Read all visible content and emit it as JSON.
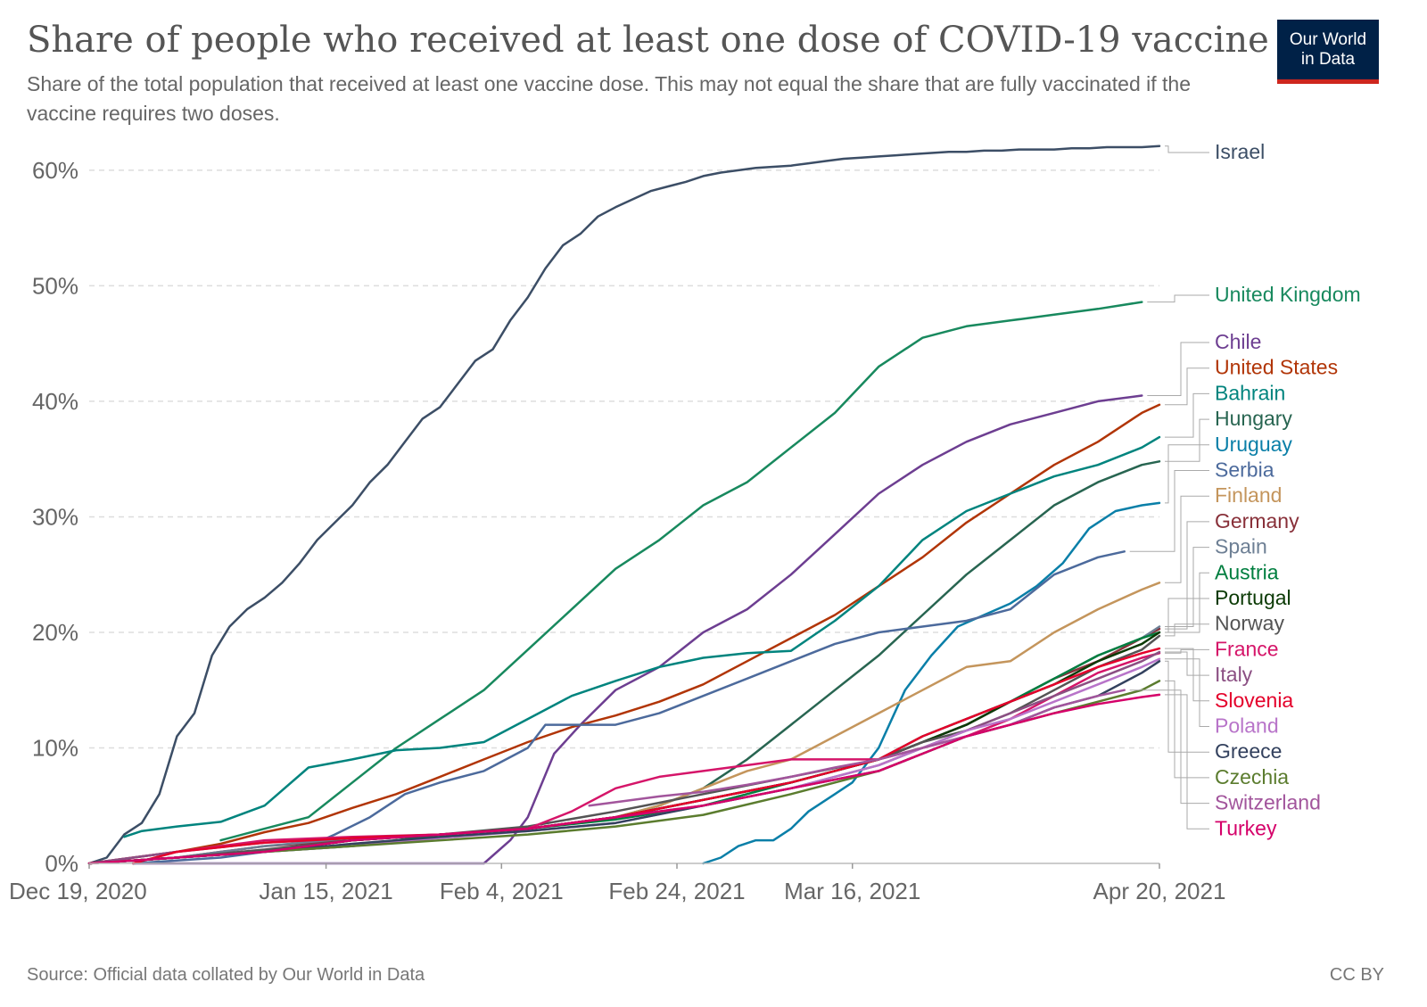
{
  "title": "Share of people who received at least one dose of COVID-19 vaccine",
  "subtitle": "Share of the total population that received at least one vaccine dose. This may not equal the share that are fully vaccinated if the vaccine requires two doses.",
  "logo": {
    "line1": "Our World",
    "line2": "in Data"
  },
  "footer": {
    "source": "Source: Official data collated by Our World in Data",
    "license": "CC BY"
  },
  "colors": {
    "accent_red": "#ce261e",
    "logo_bg": "#002147"
  },
  "chart_data": {
    "type": "line",
    "title": "Share of people who received at least one dose of COVID-19 vaccine",
    "ylabel": "",
    "xlabel": "",
    "x_unit": "days since Dec 19, 2020",
    "xlim": [
      0,
      122
    ],
    "ylim": [
      0,
      62
    ],
    "x_ticks": [
      {
        "day": 0,
        "label": "Dec 19, 2020"
      },
      {
        "day": 27,
        "label": "Jan 15, 2021"
      },
      {
        "day": 47,
        "label": "Feb 4, 2021"
      },
      {
        "day": 67,
        "label": "Feb 24, 2021"
      },
      {
        "day": 87,
        "label": "Mar 16, 2021"
      },
      {
        "day": 122,
        "label": "Apr 20, 2021"
      }
    ],
    "y_ticks": [
      {
        "value": 0,
        "label": "0%"
      },
      {
        "value": 10,
        "label": "10%"
      },
      {
        "value": 20,
        "label": "20%"
      },
      {
        "value": 30,
        "label": "30%"
      },
      {
        "value": 40,
        "label": "40%"
      },
      {
        "value": 50,
        "label": "50%"
      },
      {
        "value": 60,
        "label": "60%"
      }
    ],
    "series": [
      {
        "name": "Israel",
        "color": "#3c4e66",
        "x": [
          0,
          2,
          4,
          6,
          8,
          10,
          12,
          14,
          16,
          18,
          20,
          22,
          24,
          26,
          28,
          30,
          32,
          34,
          36,
          38,
          40,
          42,
          44,
          46,
          48,
          50,
          52,
          54,
          56,
          58,
          60,
          62,
          64,
          66,
          68,
          70,
          72,
          74,
          76,
          78,
          80,
          82,
          84,
          86,
          88,
          90,
          92,
          94,
          96,
          98,
          100,
          102,
          104,
          106,
          108,
          110,
          112,
          114,
          116,
          118,
          120,
          122
        ],
        "values": [
          0,
          0.5,
          2.5,
          3.5,
          6,
          11,
          13,
          18,
          20.5,
          22,
          23,
          24.3,
          26,
          28,
          29.5,
          31,
          33,
          34.5,
          36.5,
          38.5,
          39.5,
          41.5,
          43.5,
          44.5,
          47,
          49,
          51.5,
          53.5,
          54.5,
          56,
          56.8,
          57.5,
          58.2,
          58.6,
          59,
          59.5,
          59.8,
          60,
          60.2,
          60.3,
          60.4,
          60.6,
          60.8,
          61,
          61.1,
          61.2,
          61.3,
          61.4,
          61.5,
          61.6,
          61.6,
          61.7,
          61.7,
          61.8,
          61.8,
          61.8,
          61.9,
          61.9,
          62,
          62,
          62,
          62.1
        ]
      },
      {
        "name": "United Kingdom",
        "color": "#18895e",
        "x": [
          15,
          20,
          25,
          30,
          35,
          40,
          45,
          50,
          55,
          60,
          65,
          70,
          75,
          80,
          85,
          90,
          95,
          100,
          105,
          110,
          115,
          120
        ],
        "values": [
          2,
          3,
          4,
          7,
          10,
          12.5,
          15,
          18.5,
          22,
          25.5,
          28,
          31,
          33,
          36,
          39,
          43,
          45.5,
          46.5,
          47,
          47.5,
          48,
          48.6
        ]
      },
      {
        "name": "Chile",
        "color": "#6d3e91",
        "x": [
          5,
          10,
          20,
          30,
          40,
          45,
          48,
          50,
          53,
          56,
          60,
          65,
          70,
          75,
          80,
          85,
          90,
          95,
          100,
          105,
          110,
          115,
          120
        ],
        "values": [
          0,
          0,
          0,
          0,
          0,
          0,
          2,
          4,
          9.5,
          12,
          15,
          17,
          20,
          22,
          25,
          28.5,
          32,
          34.5,
          36.5,
          38,
          39,
          40,
          40.5
        ]
      },
      {
        "name": "United States",
        "color": "#b13507",
        "x": [
          0,
          5,
          10,
          15,
          20,
          25,
          30,
          35,
          40,
          45,
          50,
          55,
          60,
          65,
          70,
          75,
          80,
          85,
          90,
          95,
          100,
          105,
          110,
          115,
          120,
          122
        ],
        "values": [
          0,
          0.5,
          1,
          1.7,
          2.7,
          3.5,
          4.8,
          6,
          7.5,
          9,
          10.5,
          11.8,
          12.8,
          14,
          15.5,
          17.5,
          19.5,
          21.5,
          24,
          26.5,
          29.5,
          32,
          34.5,
          36.5,
          39,
          39.7
        ]
      },
      {
        "name": "Bahrain",
        "color": "#00847e",
        "x": [
          4,
          6,
          10,
          15,
          20,
          25,
          30,
          35,
          40,
          45,
          50,
          55,
          60,
          65,
          70,
          75,
          80,
          85,
          90,
          95,
          100,
          105,
          110,
          115,
          120,
          122
        ],
        "values": [
          2.3,
          2.8,
          3.2,
          3.6,
          5,
          8.3,
          9,
          9.8,
          10,
          10.5,
          12.5,
          14.5,
          15.8,
          17,
          17.8,
          18.2,
          18.4,
          21,
          24,
          28,
          30.5,
          32,
          33.5,
          34.5,
          36,
          36.9
        ]
      },
      {
        "name": "Hungary",
        "color": "#286551",
        "x": [
          0,
          10,
          20,
          30,
          40,
          50,
          55,
          60,
          65,
          70,
          75,
          80,
          85,
          90,
          95,
          100,
          105,
          110,
          115,
          120,
          122
        ],
        "values": [
          0,
          0.5,
          1,
          2,
          2.5,
          3,
          3.5,
          4,
          5,
          6.5,
          9,
          12,
          15,
          18,
          21.5,
          25,
          28,
          31,
          33,
          34.5,
          34.8
        ]
      },
      {
        "name": "Uruguay",
        "color": "#0a7fa8",
        "x": [
          70,
          72,
          74,
          76,
          78,
          80,
          82,
          85,
          87,
          90,
          93,
          96,
          99,
          102,
          105,
          108,
          111,
          114,
          117,
          120,
          122
        ],
        "values": [
          0,
          0.5,
          1.5,
          2,
          2,
          3,
          4.5,
          6,
          7,
          10,
          15,
          18,
          20.5,
          21.5,
          22.5,
          24,
          26,
          29,
          30.5,
          31,
          31.2
        ]
      },
      {
        "name": "Serbia",
        "color": "#4c6a9c",
        "x": [
          5,
          15,
          25,
          28,
          32,
          36,
          40,
          45,
          50,
          52,
          55,
          60,
          65,
          70,
          75,
          80,
          85,
          90,
          95,
          100,
          105,
          110,
          115,
          118
        ],
        "values": [
          0,
          0.5,
          1.5,
          2.5,
          4,
          6,
          7,
          8,
          10,
          12,
          12,
          12,
          13,
          14.5,
          16,
          17.5,
          19,
          20,
          20.5,
          21,
          22,
          25,
          26.5,
          27
        ]
      },
      {
        "name": "Finland",
        "color": "#c4955c",
        "x": [
          0,
          10,
          20,
          30,
          40,
          50,
          55,
          60,
          65,
          70,
          75,
          80,
          85,
          90,
          95,
          100,
          105,
          110,
          115,
          120,
          122
        ],
        "values": [
          0,
          0.5,
          1,
          2,
          2.5,
          3,
          3.5,
          4,
          5,
          6.5,
          8,
          9,
          11,
          13,
          15,
          17,
          17.5,
          20,
          22,
          23.7,
          24.3
        ]
      },
      {
        "name": "Germany",
        "color": "#883039",
        "x": [
          0,
          10,
          20,
          30,
          40,
          50,
          60,
          70,
          80,
          90,
          95,
          100,
          105,
          110,
          115,
          120,
          122
        ],
        "values": [
          0,
          0.5,
          1.5,
          2,
          2.5,
          3,
          4,
          5.5,
          7,
          9,
          10.5,
          12,
          14,
          16,
          17.5,
          19.5,
          20.3
        ]
      },
      {
        "name": "Spain",
        "color": "#6d7f94",
        "x": [
          0,
          10,
          20,
          30,
          40,
          50,
          60,
          70,
          80,
          90,
          95,
          100,
          105,
          110,
          115,
          120,
          122
        ],
        "values": [
          0,
          0.5,
          1.5,
          2.2,
          2.5,
          3,
          4,
          5.5,
          7,
          9,
          10.5,
          12,
          14,
          16,
          18,
          19.5,
          20.5
        ]
      },
      {
        "name": "Austria",
        "color": "#007e3f",
        "x": [
          0,
          10,
          20,
          30,
          40,
          50,
          60,
          70,
          80,
          90,
          95,
          100,
          105,
          110,
          115,
          120,
          122
        ],
        "values": [
          0,
          0.5,
          1,
          1.5,
          2.5,
          3,
          3.8,
          5,
          7,
          9,
          11,
          12.5,
          14,
          16,
          18,
          19.5,
          20
        ]
      },
      {
        "name": "Portugal",
        "color": "#0b3a05",
        "x": [
          0,
          10,
          20,
          30,
          40,
          50,
          60,
          70,
          80,
          90,
          95,
          100,
          105,
          110,
          115,
          120,
          122
        ],
        "values": [
          0,
          0.5,
          1,
          2,
          2.5,
          3,
          4,
          5.5,
          7,
          9,
          10.5,
          12,
          14,
          15.5,
          17.5,
          19,
          20
        ]
      },
      {
        "name": "Norway",
        "color": "#545454",
        "x": [
          0,
          10,
          20,
          30,
          40,
          50,
          60,
          70,
          80,
          90,
          95,
          100,
          105,
          110,
          115,
          120,
          122
        ],
        "values": [
          0,
          0.5,
          1.2,
          2,
          2.5,
          3.2,
          4.5,
          6,
          7.5,
          9,
          10.5,
          11.5,
          13,
          15,
          17,
          18.5,
          19.7
        ]
      },
      {
        "name": "France",
        "color": "#d51569",
        "x": [
          0,
          10,
          20,
          30,
          40,
          50,
          55,
          60,
          65,
          70,
          75,
          80,
          85,
          90,
          95,
          100,
          105,
          110,
          115,
          120,
          122
        ],
        "values": [
          0,
          1,
          2,
          2.3,
          2.5,
          3,
          4.5,
          6.5,
          7.5,
          8,
          8.5,
          9,
          9,
          9,
          10,
          11,
          12.5,
          14.5,
          16.5,
          17.8,
          18.2
        ]
      },
      {
        "name": "Italy",
        "color": "#8b4f83",
        "x": [
          0,
          10,
          20,
          30,
          40,
          50,
          60,
          70,
          80,
          90,
          95,
          100,
          105,
          110,
          115,
          120,
          122
        ],
        "values": [
          0,
          1,
          1.8,
          2.2,
          2.5,
          3,
          4,
          5,
          6.5,
          8.5,
          10,
          11.5,
          13,
          14.5,
          16,
          17.5,
          18.3
        ]
      },
      {
        "name": "Slovenia",
        "color": "#e4002b",
        "x": [
          5,
          10,
          20,
          30,
          40,
          50,
          60,
          70,
          80,
          90,
          95,
          100,
          105,
          110,
          115,
          120,
          122
        ],
        "values": [
          0,
          1,
          1.8,
          2.2,
          2.5,
          3,
          4,
          5.5,
          7,
          9,
          11,
          12.5,
          14,
          15.5,
          17,
          18.2,
          18.6
        ]
      },
      {
        "name": "Poland",
        "color": "#b874c9",
        "x": [
          0,
          10,
          20,
          30,
          40,
          50,
          60,
          70,
          80,
          90,
          95,
          100,
          105,
          110,
          115,
          120,
          122
        ],
        "values": [
          0,
          0.5,
          1,
          1.5,
          2.2,
          2.8,
          3.5,
          5,
          6.5,
          8.5,
          10,
          11.5,
          12.5,
          14,
          15.5,
          17,
          17.7
        ]
      },
      {
        "name": "Greece",
        "color": "#33415e",
        "x": [
          0,
          10,
          20,
          30,
          40,
          50,
          60,
          70,
          80,
          90,
          95,
          100,
          105,
          110,
          115,
          120,
          122
        ],
        "values": [
          0,
          0.5,
          1,
          1.7,
          2.3,
          2.8,
          3.5,
          5,
          6.5,
          8,
          9.5,
          11,
          12,
          13.5,
          14.5,
          16.5,
          17.5
        ]
      },
      {
        "name": "Czechia",
        "color": "#5b7c2e",
        "x": [
          0,
          10,
          20,
          30,
          40,
          50,
          60,
          70,
          80,
          90,
          95,
          100,
          105,
          110,
          115,
          120,
          122
        ],
        "values": [
          0,
          0.5,
          1,
          1.5,
          2,
          2.5,
          3.2,
          4.2,
          6,
          8,
          9.5,
          11,
          12,
          13,
          14,
          15,
          15.8
        ]
      },
      {
        "name": "Switzerland",
        "color": "#a2559c",
        "x": [
          57,
          60,
          65,
          70,
          75,
          80,
          85,
          90,
          95,
          100,
          105,
          110,
          115,
          118
        ],
        "values": [
          5,
          5.3,
          5.8,
          6.2,
          6.8,
          7.5,
          8.3,
          9,
          10,
          11,
          12,
          13.5,
          14.5,
          15
        ]
      },
      {
        "name": "Turkey",
        "color": "#d50069",
        "x": [
          0,
          10,
          20,
          30,
          40,
          50,
          60,
          70,
          80,
          90,
          95,
          100,
          105,
          110,
          115,
          120,
          122
        ],
        "values": [
          0,
          0.5,
          1,
          2,
          2.5,
          3,
          4,
          5,
          6.5,
          8,
          9.5,
          11,
          12,
          13,
          13.8,
          14.4,
          14.6
        ]
      }
    ]
  }
}
